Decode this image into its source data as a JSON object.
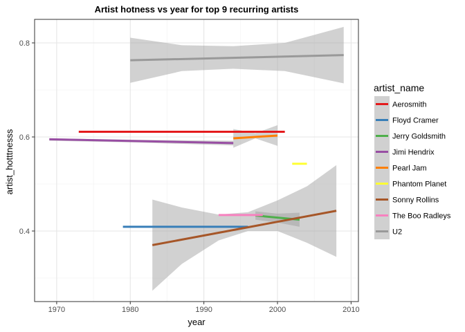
{
  "chart_data": {
    "type": "line",
    "title": "Artist hotness vs year for top 9 recurring artists",
    "xlabel": "year",
    "ylabel": "artist_hotttnesss",
    "xlim": [
      1967,
      2011
    ],
    "ylim": [
      0.25,
      0.85
    ],
    "x_ticks": [
      1970,
      1980,
      1990,
      2000,
      2010
    ],
    "y_ticks": [
      0.4,
      0.6,
      0.8
    ],
    "grid": true,
    "legend_placement": "right",
    "legend_title": "artist_name",
    "series": [
      {
        "name": "Aerosmith",
        "color": "#e41a1c",
        "x": [
          1973,
          2001
        ],
        "y": [
          0.611,
          0.611
        ],
        "band": null
      },
      {
        "name": "Floyd Cramer",
        "color": "#377eb8",
        "x": [
          1979,
          1996
        ],
        "y": [
          0.409,
          0.409
        ],
        "band": null
      },
      {
        "name": "Jerry Goldsmith",
        "color": "#4daf4a",
        "x": [
          1997,
          2003
        ],
        "y": [
          0.433,
          0.424
        ],
        "band": {
          "x": [
            1997,
            2000,
            2003
          ],
          "upper": [
            0.442,
            0.437,
            0.439
          ],
          "lower": [
            0.424,
            0.418,
            0.409
          ]
        }
      },
      {
        "name": "Jimi Hendrix",
        "color": "#984ea3",
        "x": [
          1969,
          1994
        ],
        "y": [
          0.595,
          0.587
        ],
        "band": {
          "x": [
            1969,
            1981,
            1994
          ],
          "upper": [
            0.597,
            0.594,
            0.592
          ],
          "lower": [
            0.592,
            0.588,
            0.582
          ]
        }
      },
      {
        "name": "Pearl Jam",
        "color": "#ff7f00",
        "x": [
          1994,
          2000
        ],
        "y": [
          0.597,
          0.603
        ],
        "band": {
          "x": [
            1994,
            1997,
            2000
          ],
          "upper": [
            0.617,
            0.608,
            0.625
          ],
          "lower": [
            0.577,
            0.597,
            0.581
          ]
        }
      },
      {
        "name": "Phantom Planet",
        "color": "#ffff33",
        "x": [
          2002,
          2004
        ],
        "y": [
          0.543,
          0.543
        ],
        "band": null
      },
      {
        "name": "Sonny Rollins",
        "color": "#a65628",
        "x": [
          1983,
          2008
        ],
        "y": [
          0.37,
          0.443
        ],
        "band": {
          "x": [
            1983,
            1987,
            1992,
            1996,
            2000,
            2004,
            2008
          ],
          "upper": [
            0.467,
            0.45,
            0.435,
            0.44,
            0.465,
            0.495,
            0.54
          ],
          "lower": [
            0.273,
            0.33,
            0.38,
            0.4,
            0.4,
            0.375,
            0.345
          ]
        }
      },
      {
        "name": "The Boo Radleys",
        "color": "#f781bf",
        "x": [
          1992,
          1998
        ],
        "y": [
          0.434,
          0.434
        ],
        "band": null
      },
      {
        "name": "U2",
        "color": "#999999",
        "x": [
          1980,
          2009
        ],
        "y": [
          0.763,
          0.774
        ],
        "band": {
          "x": [
            1980,
            1987,
            1994,
            2001,
            2009
          ],
          "upper": [
            0.811,
            0.795,
            0.793,
            0.8,
            0.834
          ],
          "lower": [
            0.715,
            0.74,
            0.745,
            0.74,
            0.714
          ]
        }
      }
    ]
  }
}
